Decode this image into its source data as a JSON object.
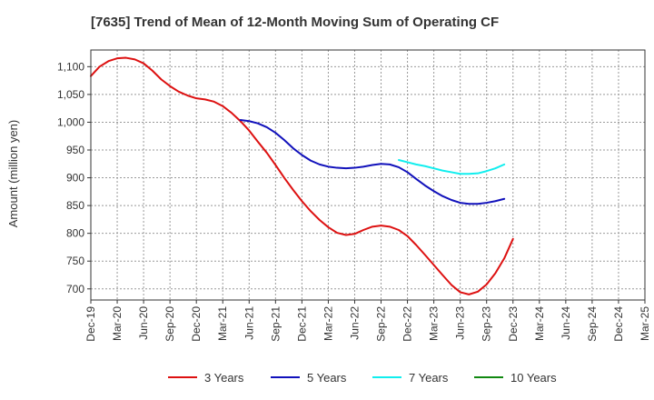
{
  "chart_data": {
    "type": "line",
    "title": "[7635]  Trend of Mean of 12-Month Moving Sum of Operating CF",
    "xlabel": "",
    "ylabel": "Amount (million yen)",
    "ylim": [
      680,
      1130
    ],
    "yticks": [
      700,
      750,
      800,
      850,
      900,
      950,
      1000,
      1050,
      1100
    ],
    "ytick_labels": [
      "700",
      "750",
      "800",
      "850",
      "900",
      "950",
      "1,000",
      "1,050",
      "1,100"
    ],
    "grid": true,
    "legend_position": "bottom",
    "categories": [
      "Dec-19",
      "Mar-20",
      "Jun-20",
      "Sep-20",
      "Dec-20",
      "Mar-21",
      "Jun-21",
      "Sep-21",
      "Dec-21",
      "Mar-22",
      "Jun-22",
      "Sep-22",
      "Dec-22",
      "Mar-23",
      "Jun-23",
      "Sep-23",
      "Dec-23",
      "Mar-24",
      "Jun-24",
      "Sep-24",
      "Dec-24",
      "Mar-25"
    ],
    "series": [
      {
        "name": "3 Years",
        "color": "#dd1111",
        "points": [
          [
            0,
            1083
          ],
          [
            0.33,
            1100
          ],
          [
            0.67,
            1110
          ],
          [
            1,
            1115
          ],
          [
            1.33,
            1116
          ],
          [
            1.67,
            1113
          ],
          [
            2,
            1106
          ],
          [
            2.33,
            1093
          ],
          [
            2.67,
            1077
          ],
          [
            3,
            1065
          ],
          [
            3.33,
            1055
          ],
          [
            3.67,
            1048
          ],
          [
            4,
            1043
          ],
          [
            4.33,
            1041
          ],
          [
            4.67,
            1037
          ],
          [
            5,
            1029
          ],
          [
            5.33,
            1017
          ],
          [
            5.67,
            1002
          ],
          [
            6,
            985
          ],
          [
            6.33,
            965
          ],
          [
            6.67,
            945
          ],
          [
            7,
            923
          ],
          [
            7.33,
            900
          ],
          [
            7.67,
            878
          ],
          [
            8,
            858
          ],
          [
            8.33,
            840
          ],
          [
            8.67,
            824
          ],
          [
            9,
            811
          ],
          [
            9.33,
            801
          ],
          [
            9.67,
            797
          ],
          [
            10,
            799
          ],
          [
            10.33,
            806
          ],
          [
            10.67,
            812
          ],
          [
            11,
            814
          ],
          [
            11.33,
            812
          ],
          [
            11.67,
            806
          ],
          [
            12,
            795
          ],
          [
            12.33,
            779
          ],
          [
            12.67,
            761
          ],
          [
            13,
            743
          ],
          [
            13.33,
            725
          ],
          [
            13.67,
            707
          ],
          [
            14,
            694
          ],
          [
            14.33,
            690
          ],
          [
            14.67,
            695
          ],
          [
            15,
            708
          ],
          [
            15.33,
            728
          ],
          [
            15.67,
            755
          ],
          [
            16,
            790
          ]
        ]
      },
      {
        "name": "5 Years",
        "color": "#1111bb",
        "points": [
          [
            5.67,
            1004
          ],
          [
            6,
            1002
          ],
          [
            6.33,
            998
          ],
          [
            6.67,
            991
          ],
          [
            7,
            981
          ],
          [
            7.33,
            968
          ],
          [
            7.67,
            953
          ],
          [
            8,
            941
          ],
          [
            8.33,
            931
          ],
          [
            8.67,
            924
          ],
          [
            9,
            920
          ],
          [
            9.33,
            918
          ],
          [
            9.67,
            917
          ],
          [
            10,
            918
          ],
          [
            10.33,
            920
          ],
          [
            10.67,
            923
          ],
          [
            11,
            925
          ],
          [
            11.33,
            924
          ],
          [
            11.67,
            919
          ],
          [
            12,
            910
          ],
          [
            12.33,
            898
          ],
          [
            12.67,
            886
          ],
          [
            13,
            876
          ],
          [
            13.33,
            867
          ],
          [
            13.67,
            860
          ],
          [
            14,
            855
          ],
          [
            14.33,
            853
          ],
          [
            14.67,
            853
          ],
          [
            15,
            855
          ],
          [
            15.33,
            858
          ],
          [
            15.67,
            862
          ]
        ]
      },
      {
        "name": "7 Years",
        "color": "#11eeee",
        "points": [
          [
            11.67,
            932
          ],
          [
            12,
            928
          ],
          [
            12.33,
            924
          ],
          [
            12.67,
            921
          ],
          [
            13,
            917
          ],
          [
            13.33,
            913
          ],
          [
            13.67,
            910
          ],
          [
            14,
            907
          ],
          [
            14.33,
            907
          ],
          [
            14.67,
            908
          ],
          [
            15,
            912
          ],
          [
            15.33,
            917
          ],
          [
            15.67,
            924
          ]
        ]
      },
      {
        "name": "10 Years",
        "color": "#118811",
        "points": []
      }
    ]
  }
}
